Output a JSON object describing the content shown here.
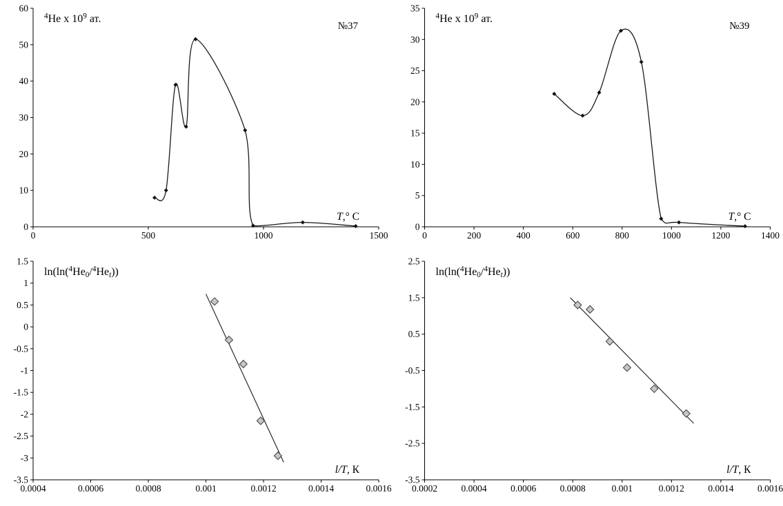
{
  "figure": {
    "background": "#ffffff",
    "text_color": "#000000",
    "axis_color": "#000000"
  },
  "chart_data": [
    {
      "id": "he-release-37",
      "type": "line",
      "title": "",
      "ylabel_parts": [
        {
          "t": "4",
          "sup": true
        },
        {
          "t": "He x 10"
        },
        {
          "t": "9",
          "sup": true
        },
        {
          "t": " ат."
        }
      ],
      "xlabel_parts": [
        {
          "t": "T",
          "italic": true
        },
        {
          "t": ",° C"
        }
      ],
      "annotation": "№37",
      "xlim": [
        0,
        1500
      ],
      "ylim": [
        0,
        60
      ],
      "xticks": [
        0,
        500,
        1000,
        1500
      ],
      "yticks": [
        0,
        10,
        20,
        30,
        40,
        50,
        60
      ],
      "grid": false,
      "legend": "none",
      "points": [
        [
          527,
          8
        ],
        [
          577,
          10
        ],
        [
          618,
          39
        ],
        [
          664,
          27.5
        ],
        [
          705,
          51.5
        ],
        [
          920,
          26.5
        ],
        [
          955,
          0.3
        ],
        [
          1170,
          1.2
        ],
        [
          1400,
          0.2
        ]
      ],
      "line": {
        "smooth": true,
        "color": "#1a1a1a",
        "width": 1.3
      },
      "marker": {
        "shape": "diamond",
        "size": 3,
        "fill": "#111111",
        "stroke": "none"
      }
    },
    {
      "id": "he-release-39",
      "type": "line",
      "title": "",
      "ylabel_parts": [
        {
          "t": "4",
          "sup": true
        },
        {
          "t": "He x 10"
        },
        {
          "t": "9",
          "sup": true
        },
        {
          "t": " ат."
        }
      ],
      "xlabel_parts": [
        {
          "t": "T",
          "italic": true
        },
        {
          "t": ",° C"
        }
      ],
      "annotation": "№39",
      "xlim": [
        0,
        1400
      ],
      "ylim": [
        0,
        35
      ],
      "xticks": [
        0,
        200,
        400,
        600,
        800,
        1000,
        1200,
        1400
      ],
      "yticks": [
        0,
        5,
        10,
        15,
        20,
        25,
        30,
        35
      ],
      "grid": false,
      "legend": "none",
      "points": [
        [
          525,
          21.3
        ],
        [
          640,
          17.8
        ],
        [
          707,
          21.5
        ],
        [
          795,
          31.4
        ],
        [
          878,
          26.4
        ],
        [
          958,
          1.3
        ],
        [
          1030,
          0.7
        ],
        [
          1298,
          0.1
        ]
      ],
      "line": {
        "smooth": true,
        "color": "#1a1a1a",
        "width": 1.3
      },
      "marker": {
        "shape": "diamond",
        "size": 3,
        "fill": "#111111",
        "stroke": "none"
      }
    },
    {
      "id": "arrhenius-37",
      "type": "scatter",
      "title": "",
      "ylabel_parts": [
        {
          "t": "ln(ln("
        },
        {
          "t": "4",
          "sup": true
        },
        {
          "t": "He"
        },
        {
          "t": "0",
          "sub": true
        },
        {
          "t": "/"
        },
        {
          "t": "4",
          "sup": true
        },
        {
          "t": "He"
        },
        {
          "t": "t",
          "sub": true,
          "italic": true
        },
        {
          "t": "))"
        }
      ],
      "xlabel_parts": [
        {
          "t": "l/T",
          "italic": true
        },
        {
          "t": ", К"
        }
      ],
      "annotation": "",
      "xlim": [
        0.0004,
        0.0016
      ],
      "ylim": [
        -3.5,
        1.5
      ],
      "xticks": [
        0.0004,
        0.0006,
        0.0008,
        0.001,
        0.0012,
        0.0014,
        0.0016
      ],
      "yticks": [
        1.5,
        1,
        0.5,
        0,
        -0.5,
        -1,
        -1.5,
        -2,
        -2.5,
        -3,
        -3.5
      ],
      "grid": false,
      "legend": "none",
      "points": [
        [
          0.00103,
          0.58
        ],
        [
          0.00108,
          -0.3
        ],
        [
          0.00113,
          -0.85
        ],
        [
          0.00119,
          -2.15
        ],
        [
          0.00125,
          -2.95
        ]
      ],
      "trendline": {
        "x1": 0.001,
        "y1": 0.75,
        "x2": 0.00127,
        "y2": -3.1,
        "color": "#2b2b2b",
        "width": 1.2
      },
      "marker": {
        "shape": "diamond",
        "size": 5.5,
        "fill": "#c6c6c6",
        "stroke": "#3c3c3c"
      }
    },
    {
      "id": "arrhenius-39",
      "type": "scatter",
      "title": "",
      "ylabel_parts": [
        {
          "t": "ln(ln("
        },
        {
          "t": "4",
          "sup": true
        },
        {
          "t": "He"
        },
        {
          "t": "0",
          "sub": true
        },
        {
          "t": "/"
        },
        {
          "t": "4",
          "sup": true
        },
        {
          "t": "He"
        },
        {
          "t": "t",
          "sub": true,
          "italic": true
        },
        {
          "t": "))"
        }
      ],
      "xlabel_parts": [
        {
          "t": "l/T",
          "italic": true
        },
        {
          "t": ", К"
        }
      ],
      "annotation": "",
      "xlim": [
        0.0002,
        0.0016
      ],
      "ylim": [
        -3.5,
        2.5
      ],
      "xticks": [
        0.0002,
        0.0004,
        0.0006,
        0.0008,
        0.001,
        0.0012,
        0.0014,
        0.0016
      ],
      "yticks": [
        2.5,
        1.5,
        0.5,
        -0.5,
        -1.5,
        -2.5,
        -3.5
      ],
      "grid": false,
      "legend": "none",
      "points": [
        [
          0.00082,
          1.3
        ],
        [
          0.00087,
          1.18
        ],
        [
          0.00095,
          0.3
        ],
        [
          0.00102,
          -0.42
        ],
        [
          0.00113,
          -1.0
        ],
        [
          0.00126,
          -1.68
        ]
      ],
      "trendline": {
        "x1": 0.00079,
        "y1": 1.5,
        "x2": 0.00129,
        "y2": -1.95,
        "color": "#2b2b2b",
        "width": 1.2
      },
      "marker": {
        "shape": "diamond",
        "size": 5.5,
        "fill": "#c6c6c6",
        "stroke": "#3c3c3c"
      }
    }
  ]
}
